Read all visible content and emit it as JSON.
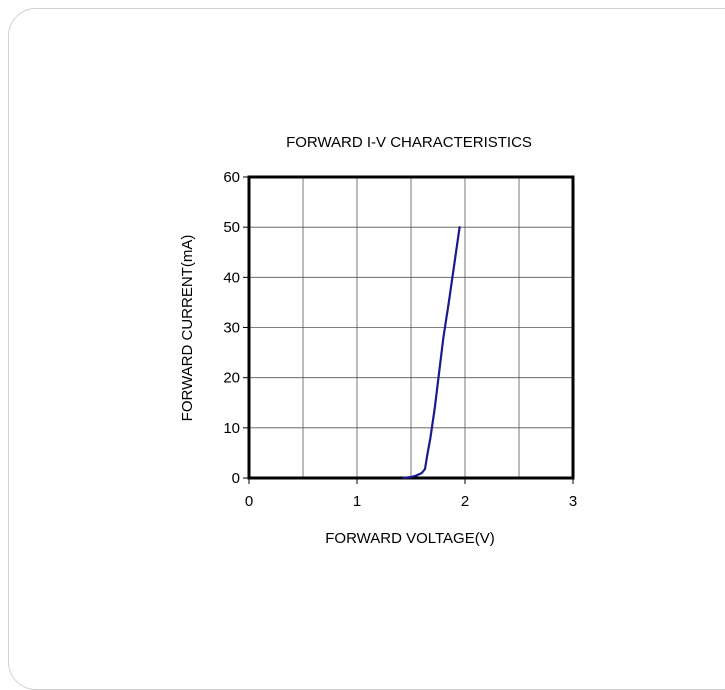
{
  "chart_data": {
    "type": "line",
    "title": "FORWARD I-V CHARACTERISTICS",
    "xlabel": "FORWARD VOLTAGE(V)",
    "ylabel": "FORWARD CURRENT(mA)",
    "xlim": [
      0,
      3
    ],
    "ylim": [
      0,
      60
    ],
    "x_ticks": [
      "0",
      "1",
      "2",
      "3"
    ],
    "y_ticks": [
      "0",
      "10",
      "20",
      "30",
      "40",
      "50",
      "60"
    ],
    "grid": true,
    "line_color": "#1a1a8c",
    "series": [
      {
        "x": [
          1.43,
          1.5,
          1.55,
          1.6,
          1.63,
          1.65,
          1.68,
          1.72,
          1.76,
          1.8,
          1.85,
          1.9,
          1.95
        ],
        "y": [
          0,
          0.2,
          0.5,
          1.0,
          1.8,
          4.5,
          8.0,
          14.0,
          21.0,
          28.0,
          35.0,
          42.5,
          50.0
        ]
      }
    ]
  }
}
